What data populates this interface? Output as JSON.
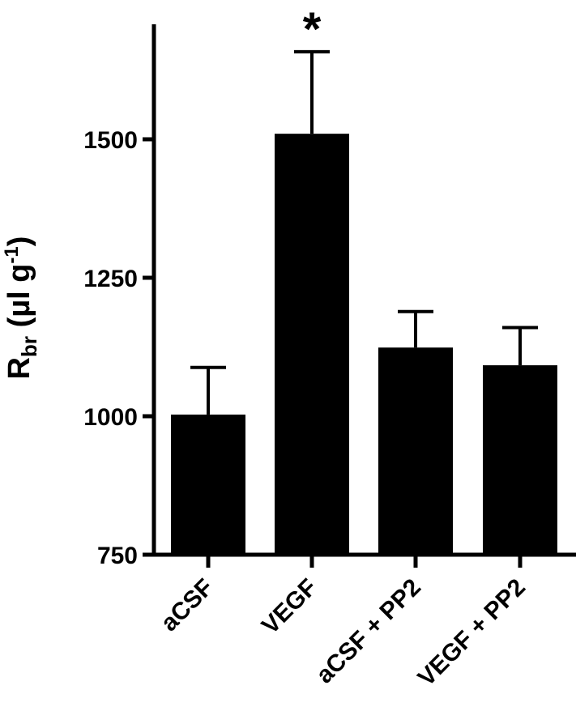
{
  "chart_data": {
    "type": "bar",
    "title": "",
    "xlabel": "",
    "ylabel": {
      "main": "R",
      "sub": "br",
      "unit_open": " (µl g",
      "unit_sup": "-1",
      "unit_close": ")"
    },
    "categories": [
      "aCSF",
      "VEGF",
      "aCSF + PP2",
      "VEGF + PP2"
    ],
    "values": [
      1003,
      1510,
      1124,
      1092
    ],
    "error_upper": [
      85,
      148,
      65,
      68
    ],
    "annotations": [
      "",
      "*",
      "",
      ""
    ],
    "ylim": [
      750,
      1960
    ],
    "yticks": [
      750,
      1000,
      1250,
      1500
    ],
    "bar_color": "#000000"
  }
}
